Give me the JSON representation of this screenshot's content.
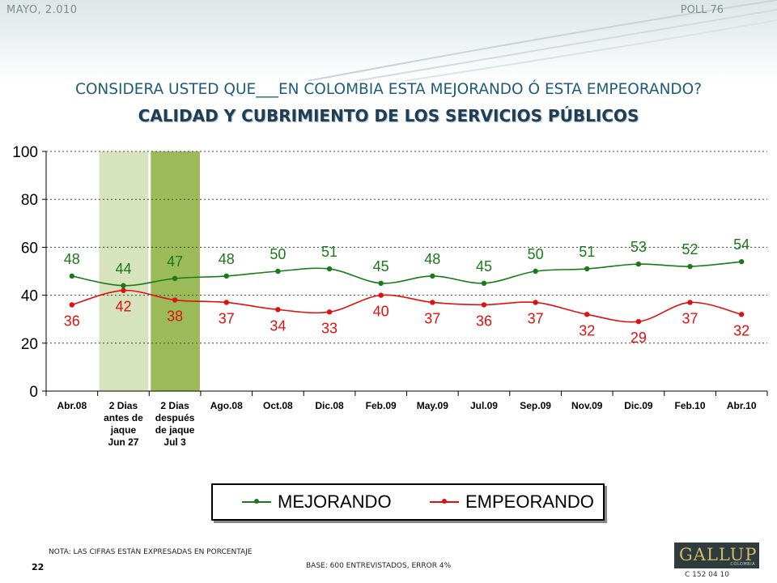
{
  "header": {
    "date_label": "MAYO, 2.010",
    "poll_label": "POLL 76"
  },
  "question": "CONSIDERA USTED QUE___EN COLOMBIA ESTA MEJORANDO Ó ESTA EMPEORANDO?",
  "subtitle": "CALIDAD Y CUBRIMIENTO DE LOS SERVICIOS PÚBLICOS",
  "chart_data": {
    "type": "line",
    "categories": [
      [
        "Abr.08"
      ],
      [
        "2 Dias",
        "antes de",
        "jaque",
        "Jun 27"
      ],
      [
        "2 Dias",
        "después",
        "de jaque",
        "Jul 3"
      ],
      [
        "Ago.08"
      ],
      [
        "Oct.08"
      ],
      [
        "Dic.08"
      ],
      [
        "Feb.09"
      ],
      [
        "May.09"
      ],
      [
        "Jul.09"
      ],
      [
        "Sep.09"
      ],
      [
        "Nov.09"
      ],
      [
        "Dic.09"
      ],
      [
        "Feb.10"
      ],
      [
        "Abr.10"
      ]
    ],
    "series": [
      {
        "name": "MEJORANDO",
        "color": "#1a7a1a",
        "values": [
          48,
          44,
          47,
          48,
          50,
          51,
          45,
          48,
          45,
          50,
          51,
          53,
          52,
          54
        ]
      },
      {
        "name": "EMPEORANDO",
        "color": "#e01010",
        "values": [
          36,
          42,
          38,
          37,
          34,
          33,
          40,
          37,
          36,
          37,
          32,
          29,
          37,
          32
        ]
      }
    ],
    "ylim": [
      0,
      100
    ],
    "yticks": [
      0,
      20,
      40,
      60,
      80,
      100
    ],
    "grid": true,
    "highlighted_categories": [
      {
        "index": 1,
        "color": "#d6e3bd"
      },
      {
        "index": 2,
        "color": "#9bbb59"
      }
    ],
    "legend_position": "bottom"
  },
  "footer": {
    "note": "NOTA: LAS CIFRAS ESTÁN EXPRESADAS EN PORCENTAJE",
    "page_number": "22",
    "base": "BASE: 600 ENTREVISTADOS, ERROR 4%",
    "logo_text": "GALLUP",
    "logo_subtext": "COLOMBIA",
    "code": "C 152 04 10"
  }
}
